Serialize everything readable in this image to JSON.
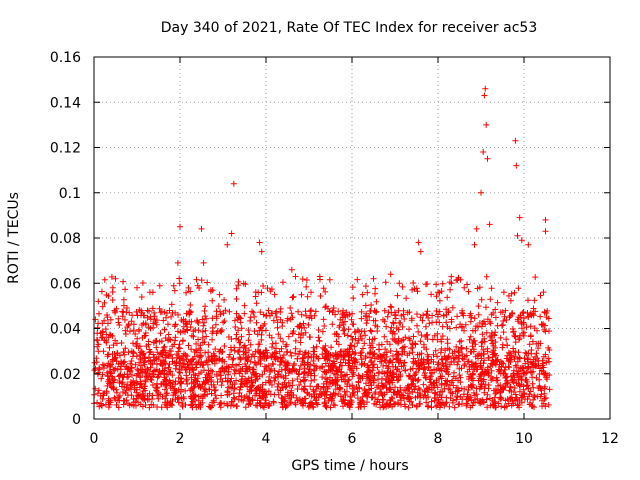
{
  "chart_data": {
    "type": "scatter",
    "title": "Day 340 of 2021, Rate Of TEC Index for receiver ac53",
    "xlabel": "GPS time / hours",
    "ylabel": "ROTI / TECUs",
    "xlim": [
      0,
      12
    ],
    "ylim": [
      0,
      0.16
    ],
    "x_ticks": [
      0,
      2,
      4,
      6,
      8,
      10,
      12
    ],
    "x_tick_labels": [
      "0",
      "2",
      "4",
      "6",
      "8",
      "10",
      "12"
    ],
    "y_ticks": [
      0,
      0.02,
      0.04,
      0.06,
      0.08,
      0.1,
      0.12,
      0.14,
      0.16
    ],
    "y_tick_labels": [
      "0",
      "0.02",
      "0.04",
      "0.06",
      "0.08",
      "0.1",
      "0.12",
      "0.14",
      "0.16"
    ],
    "grid": true,
    "marker": "+",
    "series": [
      {
        "name": "ROTI",
        "color": "#ff0000",
        "x_range": [
          0,
          10.6
        ],
        "baseline_range": [
          0.005,
          0.03
        ],
        "notable_points": [
          {
            "x": 0.1,
            "y": 0.052
          },
          {
            "x": 0.5,
            "y": 0.062
          },
          {
            "x": 1.0,
            "y": 0.058
          },
          {
            "x": 1.3,
            "y": 0.056
          },
          {
            "x": 1.95,
            "y": 0.069
          },
          {
            "x": 2.0,
            "y": 0.085
          },
          {
            "x": 2.5,
            "y": 0.084
          },
          {
            "x": 2.55,
            "y": 0.069
          },
          {
            "x": 3.1,
            "y": 0.077
          },
          {
            "x": 3.2,
            "y": 0.082
          },
          {
            "x": 3.25,
            "y": 0.104
          },
          {
            "x": 3.85,
            "y": 0.078
          },
          {
            "x": 3.9,
            "y": 0.074
          },
          {
            "x": 4.6,
            "y": 0.066
          },
          {
            "x": 5.25,
            "y": 0.063
          },
          {
            "x": 6.5,
            "y": 0.062
          },
          {
            "x": 6.9,
            "y": 0.064
          },
          {
            "x": 7.1,
            "y": 0.06
          },
          {
            "x": 7.55,
            "y": 0.078
          },
          {
            "x": 7.6,
            "y": 0.074
          },
          {
            "x": 8.0,
            "y": 0.056
          },
          {
            "x": 8.85,
            "y": 0.077
          },
          {
            "x": 8.9,
            "y": 0.084
          },
          {
            "x": 9.0,
            "y": 0.1
          },
          {
            "x": 9.05,
            "y": 0.118
          },
          {
            "x": 9.08,
            "y": 0.143
          },
          {
            "x": 9.1,
            "y": 0.146
          },
          {
            "x": 9.12,
            "y": 0.13
          },
          {
            "x": 9.15,
            "y": 0.115
          },
          {
            "x": 9.2,
            "y": 0.086
          },
          {
            "x": 9.8,
            "y": 0.123
          },
          {
            "x": 9.82,
            "y": 0.112
          },
          {
            "x": 9.85,
            "y": 0.081
          },
          {
            "x": 9.9,
            "y": 0.089
          },
          {
            "x": 9.95,
            "y": 0.079
          },
          {
            "x": 10.1,
            "y": 0.077
          },
          {
            "x": 10.5,
            "y": 0.088
          },
          {
            "x": 10.5,
            "y": 0.083
          }
        ]
      }
    ]
  }
}
